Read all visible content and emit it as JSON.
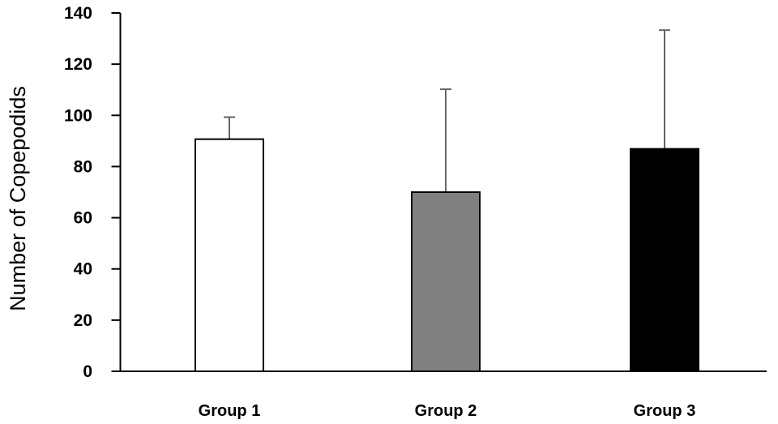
{
  "chart_data": {
    "type": "bar",
    "title": "",
    "xlabel": "",
    "ylabel": "Number of Copepodids",
    "ylim": [
      0,
      140
    ],
    "yticks": [
      0,
      20,
      40,
      60,
      80,
      100,
      120,
      140
    ],
    "grid": false,
    "legend": "none",
    "categories": [
      "Group 1",
      "Group 2",
      "Group 3"
    ],
    "values": [
      90.7,
      70,
      86.9
    ],
    "error_plus": [
      8.6,
      40.2,
      46.4
    ],
    "colors": [
      "#ffffff",
      "#808080",
      "#000000"
    ],
    "error_color": "#666666"
  }
}
